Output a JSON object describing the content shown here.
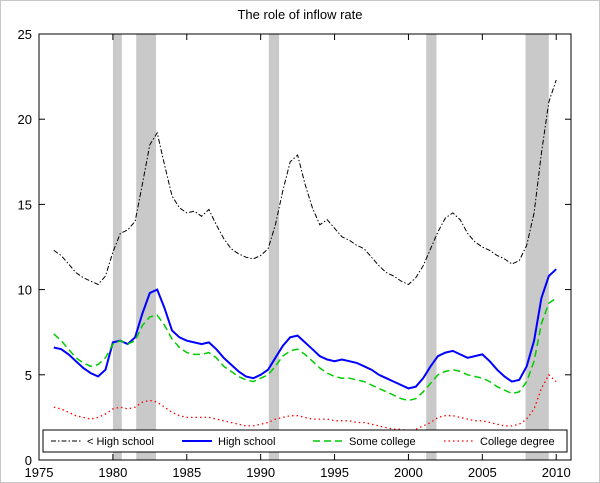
{
  "chart_data": {
    "type": "line",
    "title": "The role of inflow rate",
    "xlabel": "",
    "ylabel": "",
    "xlim": [
      1975,
      2011
    ],
    "ylim": [
      0,
      25
    ],
    "xticks": [
      1975,
      1980,
      1985,
      1990,
      1995,
      2000,
      2005,
      2010
    ],
    "yticks": [
      0,
      5,
      10,
      15,
      20,
      25
    ],
    "grid": false,
    "legend_position": "bottom-inside-horizontal",
    "background_color": "#ffffff",
    "recession_color": "#c9c9c9",
    "recession_bands": [
      [
        1980.0,
        1980.6
      ],
      [
        1981.58,
        1982.92
      ],
      [
        1990.55,
        1991.25
      ],
      [
        2001.2,
        2001.9
      ],
      [
        2007.92,
        2009.5
      ]
    ],
    "x": [
      1976,
      1976.5,
      1977,
      1977.5,
      1978,
      1978.5,
      1979,
      1979.5,
      1980,
      1980.5,
      1981,
      1981.5,
      1982,
      1982.5,
      1983,
      1983.5,
      1984,
      1984.5,
      1985,
      1985.5,
      1986,
      1986.5,
      1987,
      1987.5,
      1988,
      1988.5,
      1989,
      1989.5,
      1990,
      1990.5,
      1991,
      1991.5,
      1992,
      1992.5,
      1993,
      1993.5,
      1994,
      1994.5,
      1995,
      1995.5,
      1996,
      1996.5,
      1997,
      1997.5,
      1998,
      1998.5,
      1999,
      1999.5,
      2000,
      2000.5,
      2001,
      2001.5,
      2002,
      2002.5,
      2003,
      2003.5,
      2004,
      2004.5,
      2005,
      2005.5,
      2006,
      2006.5,
      2007,
      2007.5,
      2008,
      2008.5,
      2009,
      2009.5,
      2010
    ],
    "series": [
      {
        "key": "lt-high-school",
        "label": "< High school",
        "color": "#000000",
        "style": "dash-dot",
        "width": 1,
        "dash": "5 2 1.5 2",
        "values": [
          12.3,
          12.0,
          11.5,
          11.0,
          10.7,
          10.5,
          10.3,
          10.8,
          12.2,
          13.3,
          13.5,
          14.0,
          16.2,
          18.5,
          19.2,
          17.3,
          15.5,
          14.8,
          14.5,
          14.6,
          14.3,
          14.7,
          13.8,
          13.0,
          12.4,
          12.1,
          11.9,
          11.8,
          12.0,
          12.4,
          13.8,
          15.8,
          17.5,
          17.9,
          16.2,
          14.8,
          13.8,
          14.1,
          13.6,
          13.1,
          12.9,
          12.6,
          12.4,
          11.9,
          11.4,
          11.0,
          10.8,
          10.5,
          10.3,
          10.7,
          11.4,
          12.4,
          13.4,
          14.2,
          14.5,
          14.1,
          13.3,
          12.8,
          12.5,
          12.3,
          12.0,
          11.8,
          11.5,
          11.7,
          12.6,
          14.5,
          18.0,
          21.0,
          22.3
        ]
      },
      {
        "key": "high-school",
        "label": "High school",
        "color": "#0000ff",
        "style": "solid",
        "width": 2,
        "dash": "none",
        "values": [
          6.6,
          6.5,
          6.2,
          5.8,
          5.4,
          5.1,
          4.9,
          5.3,
          6.9,
          7.0,
          6.8,
          7.2,
          8.6,
          9.8,
          10.0,
          8.9,
          7.6,
          7.2,
          7.0,
          6.9,
          6.8,
          6.9,
          6.5,
          6.0,
          5.6,
          5.2,
          4.9,
          4.8,
          5.0,
          5.3,
          6.0,
          6.7,
          7.2,
          7.3,
          6.9,
          6.5,
          6.1,
          5.9,
          5.8,
          5.9,
          5.8,
          5.7,
          5.5,
          5.3,
          5.0,
          4.8,
          4.6,
          4.4,
          4.2,
          4.3,
          4.8,
          5.5,
          6.1,
          6.3,
          6.4,
          6.2,
          6.0,
          6.1,
          6.2,
          5.8,
          5.3,
          4.9,
          4.6,
          4.7,
          5.5,
          7.0,
          9.5,
          10.8,
          11.2
        ]
      },
      {
        "key": "some-college",
        "label": "Some college",
        "color": "#00cc00",
        "style": "dashed",
        "width": 1.5,
        "dash": "7 4",
        "values": [
          7.4,
          7.0,
          6.5,
          6.0,
          5.7,
          5.5,
          5.6,
          6.0,
          6.8,
          7.0,
          6.8,
          7.0,
          7.9,
          8.4,
          8.5,
          7.9,
          7.1,
          6.6,
          6.3,
          6.2,
          6.2,
          6.3,
          6.0,
          5.5,
          5.2,
          4.9,
          4.7,
          4.6,
          4.8,
          5.0,
          5.5,
          6.1,
          6.4,
          6.5,
          6.2,
          5.8,
          5.4,
          5.1,
          4.9,
          4.8,
          4.8,
          4.7,
          4.6,
          4.4,
          4.2,
          4.0,
          3.8,
          3.6,
          3.5,
          3.6,
          4.0,
          4.5,
          5.0,
          5.2,
          5.3,
          5.2,
          5.0,
          4.9,
          4.8,
          4.6,
          4.3,
          4.1,
          3.9,
          4.0,
          4.6,
          5.8,
          8.0,
          9.2,
          9.5
        ]
      },
      {
        "key": "college-degree",
        "label": "College degree",
        "color": "#ff0000",
        "style": "dotted",
        "width": 1.3,
        "dash": "1.5 3",
        "values": [
          3.1,
          3.0,
          2.8,
          2.6,
          2.5,
          2.4,
          2.5,
          2.7,
          3.0,
          3.1,
          3.0,
          3.1,
          3.4,
          3.5,
          3.4,
          3.1,
          2.8,
          2.6,
          2.5,
          2.5,
          2.5,
          2.5,
          2.4,
          2.3,
          2.2,
          2.1,
          2.0,
          2.0,
          2.1,
          2.2,
          2.4,
          2.5,
          2.6,
          2.6,
          2.5,
          2.4,
          2.4,
          2.4,
          2.3,
          2.3,
          2.3,
          2.2,
          2.2,
          2.1,
          2.0,
          1.9,
          1.8,
          1.8,
          1.7,
          1.8,
          2.0,
          2.2,
          2.5,
          2.6,
          2.6,
          2.5,
          2.4,
          2.3,
          2.3,
          2.2,
          2.1,
          2.0,
          2.0,
          2.1,
          2.4,
          3.0,
          4.2,
          5.0,
          4.6
        ]
      }
    ]
  }
}
